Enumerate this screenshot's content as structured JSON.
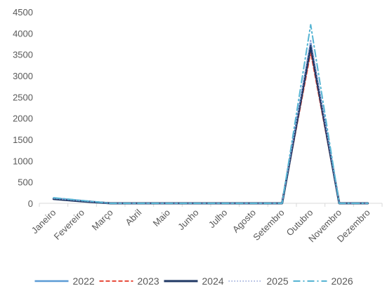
{
  "chart_data": {
    "type": "line",
    "categories": [
      "Janeiro",
      "Fevereiro",
      "Março",
      "Abril",
      "Maio",
      "Junho",
      "Julho",
      "Agosto",
      "Setembro",
      "Outubro",
      "Novembro",
      "Dezembro"
    ],
    "ylim": [
      0,
      4500
    ],
    "yticks": [
      0,
      500,
      1000,
      1500,
      2000,
      2500,
      3000,
      3500,
      4000,
      4500
    ],
    "grid": false,
    "legend_position": "bottom",
    "series": [
      {
        "name": "2022",
        "color": "#5b9bd5",
        "dash": "solid",
        "values": [
          120,
          60,
          0,
          0,
          0,
          0,
          0,
          0,
          0,
          3750,
          0,
          0
        ]
      },
      {
        "name": "2023",
        "color": "#e74c3c",
        "dash": "dashed",
        "values": [
          110,
          50,
          0,
          0,
          0,
          0,
          0,
          0,
          0,
          3550,
          0,
          0
        ]
      },
      {
        "name": "2024",
        "color": "#1f3864",
        "dash": "solid-thick",
        "values": [
          100,
          45,
          0,
          0,
          0,
          0,
          0,
          0,
          0,
          3700,
          0,
          0
        ]
      },
      {
        "name": "2025",
        "color": "#8e9fd6",
        "dash": "dotted",
        "values": [
          115,
          55,
          0,
          0,
          0,
          0,
          0,
          0,
          0,
          3850,
          0,
          0
        ]
      },
      {
        "name": "2026",
        "color": "#56b4d3",
        "dash": "dashdot",
        "values": [
          130,
          65,
          0,
          0,
          0,
          0,
          0,
          0,
          0,
          4200,
          0,
          0
        ]
      }
    ]
  }
}
